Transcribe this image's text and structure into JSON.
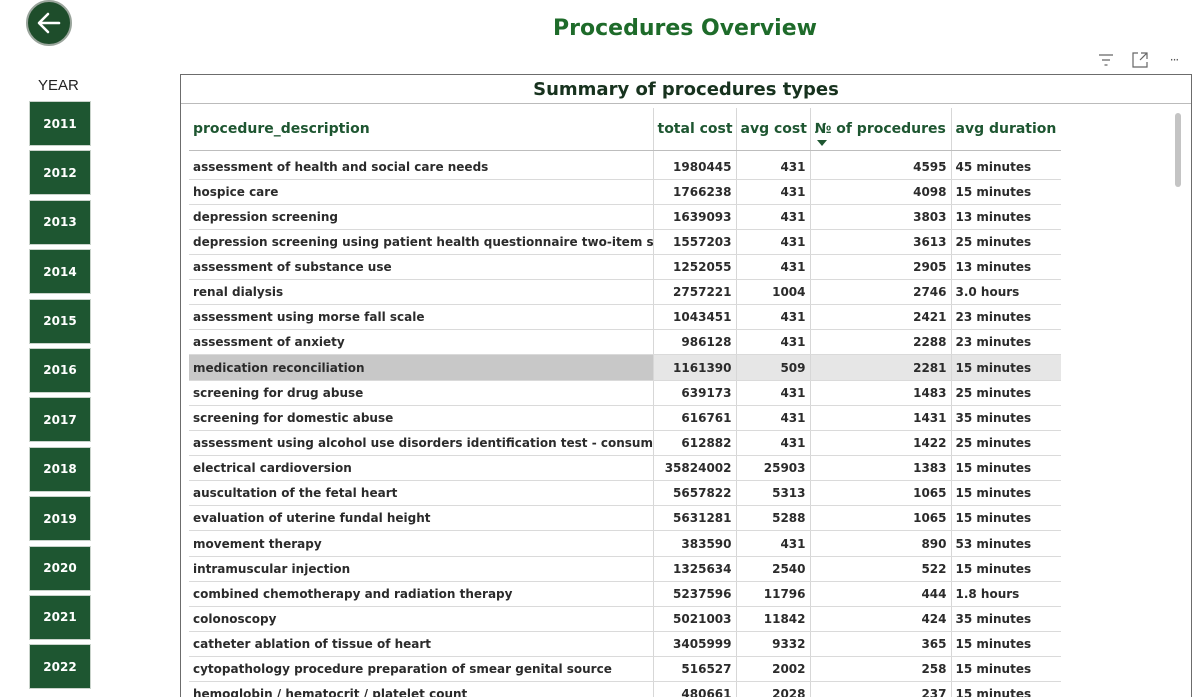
{
  "page": {
    "title": "Procedures Overview"
  },
  "nav": {
    "back_icon": "arrow-left-icon"
  },
  "slicer": {
    "label": "YEAR",
    "years": [
      "2011",
      "2012",
      "2013",
      "2014",
      "2015",
      "2016",
      "2017",
      "2018",
      "2019",
      "2020",
      "2021",
      "2022"
    ]
  },
  "toolbar": {
    "icons": [
      "filter-icon",
      "focus-mode-icon",
      "more-options-icon"
    ],
    "more_label": "···"
  },
  "table": {
    "title": "Summary of procedures types",
    "columns": [
      "procedure_description",
      "total cost",
      "avg cost",
      "№ of procedures",
      "avg duration"
    ],
    "sorted_column": "№ of procedures",
    "sort_direction": "descending",
    "selected_row": "medication reconciliation",
    "rows": [
      [
        "assessment of health and social care needs",
        "1980445",
        "431",
        "4595",
        "45 minutes"
      ],
      [
        "hospice care",
        "1766238",
        "431",
        "4098",
        "15 minutes"
      ],
      [
        "depression screening",
        "1639093",
        "431",
        "3803",
        "13 minutes"
      ],
      [
        "depression screening using patient health questionnaire two-item score",
        "1557203",
        "431",
        "3613",
        "25 minutes"
      ],
      [
        "assessment of substance use",
        "1252055",
        "431",
        "2905",
        "13 minutes"
      ],
      [
        "renal dialysis",
        "2757221",
        "1004",
        "2746",
        "3.0 hours"
      ],
      [
        "assessment using morse fall scale",
        "1043451",
        "431",
        "2421",
        "23 minutes"
      ],
      [
        "assessment of anxiety",
        "986128",
        "431",
        "2288",
        "23 minutes"
      ],
      [
        "medication reconciliation",
        "1161390",
        "509",
        "2281",
        "15 minutes"
      ],
      [
        "screening for drug abuse",
        "639173",
        "431",
        "1483",
        "25 minutes"
      ],
      [
        "screening for domestic abuse",
        "616761",
        "431",
        "1431",
        "35 minutes"
      ],
      [
        "assessment using alcohol use disorders identification test - consumption",
        "612882",
        "431",
        "1422",
        "25 minutes"
      ],
      [
        "electrical cardioversion",
        "35824002",
        "25903",
        "1383",
        "15 minutes"
      ],
      [
        "auscultation of the fetal heart",
        "5657822",
        "5313",
        "1065",
        "15 minutes"
      ],
      [
        "evaluation of uterine fundal height",
        "5631281",
        "5288",
        "1065",
        "15 minutes"
      ],
      [
        "movement therapy",
        "383590",
        "431",
        "890",
        "53 minutes"
      ],
      [
        "intramuscular injection",
        "1325634",
        "2540",
        "522",
        "15 minutes"
      ],
      [
        "combined chemotherapy and radiation therapy",
        "5237596",
        "11796",
        "444",
        "1.8 hours"
      ],
      [
        "colonoscopy",
        "5021003",
        "11842",
        "424",
        "35 minutes"
      ],
      [
        "catheter ablation of tissue of heart",
        "3405999",
        "9332",
        "365",
        "15 minutes"
      ],
      [
        "cytopathology procedure preparation of smear genital source",
        "516527",
        "2002",
        "258",
        "15 minutes"
      ],
      [
        "hemoglobin / hematocrit / platelet count",
        "480661",
        "2028",
        "237",
        "15 minutes"
      ]
    ]
  }
}
